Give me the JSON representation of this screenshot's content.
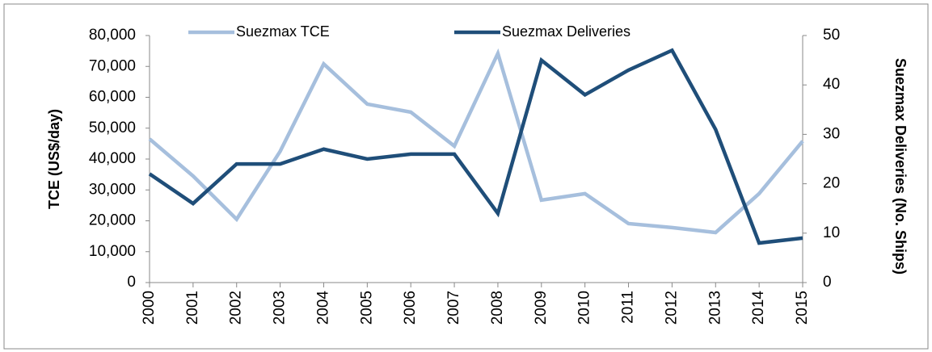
{
  "chart_data": {
    "type": "line",
    "categories": [
      "2000",
      "2001",
      "2002",
      "2003",
      "2004",
      "2005",
      "2006",
      "2007",
      "2008",
      "2009",
      "2010",
      "2011",
      "2012",
      "2013",
      "2014",
      "2015"
    ],
    "series": [
      {
        "name": "Suezmax TCE",
        "color": "#a6bfdd",
        "values": [
          46500,
          34500,
          20500,
          42500,
          70800,
          57800,
          55200,
          44200,
          74200,
          26700,
          28800,
          19100,
          17800,
          16200,
          28800,
          45800
        ]
      },
      {
        "name": "Suezmax Deliveries",
        "color": "#1f4e79",
        "axis": "y2",
        "values": [
          22,
          16,
          24,
          24,
          27,
          25,
          26,
          26,
          14,
          45,
          38,
          43,
          47,
          31,
          8,
          9
        ]
      }
    ],
    "ylabel": "TCE (US$/day)",
    "y2label": "Suezmax Deliveries (No. Ships)",
    "ylim": [
      0,
      80000
    ],
    "yticks": [
      0,
      {
        "value": 10000,
        "label": "10,000"
      },
      {
        "value": 20000,
        "label": "20,000"
      },
      {
        "value": 30000,
        "label": "30,000"
      },
      {
        "value": 40000,
        "label": "40,000"
      },
      {
        "value": 50000,
        "label": "50,000"
      },
      {
        "value": 60000,
        "label": "60,000"
      },
      {
        "value": 70000,
        "label": "70,000"
      },
      {
        "value": 80000,
        "label": "80,000"
      }
    ],
    "y2lim": [
      0,
      50
    ],
    "y2ticks": [
      0,
      10,
      20,
      30,
      40,
      50
    ],
    "grid": false,
    "legend": "top"
  }
}
